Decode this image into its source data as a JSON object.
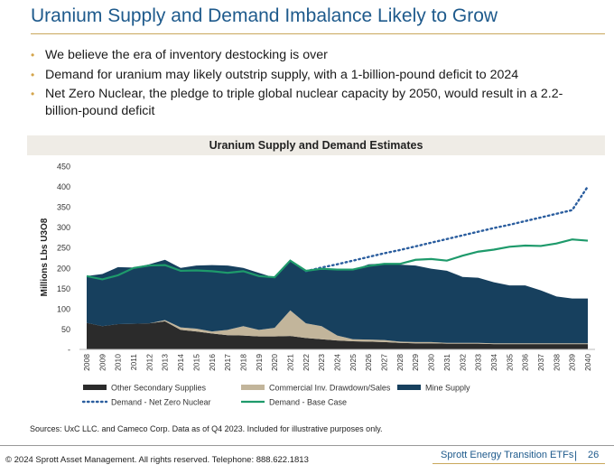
{
  "slide": {
    "title": "Uranium Supply and Demand Imbalance Likely to Grow",
    "bullets": [
      "We believe the era of inventory destocking is over",
      "Demand for uranium may likely outstrip supply, with a 1-billion-pound deficit to 2024",
      "Net Zero Nuclear, the pledge to triple global nuclear capacity by 2050, would result in a 2.2-billion-pound deficit"
    ],
    "bullet_marker": "•",
    "sources": "Sources: UxC LLC. and Cameco Corp. Data as of Q4 2023. Included for illustrative purposes only.",
    "copyright": "© 2024 Sprott Asset Management. All rights reserved. Telephone: 888.622.1813",
    "brand": "Sprott Energy Transition ETFs",
    "separator": "|",
    "page_number": "26"
  },
  "chart_data": {
    "type": "area",
    "title": "Uranium Supply and Demand Estimates",
    "ylabel": "Millions Lbs U3O8",
    "xlabel": "",
    "ylim": [
      0,
      450
    ],
    "yticks": [
      0,
      50,
      100,
      150,
      200,
      250,
      300,
      350,
      400,
      450
    ],
    "ytick_labels": [
      "-",
      "50",
      "100",
      "150",
      "200",
      "250",
      "300",
      "350",
      "400",
      "450"
    ],
    "x": [
      "2008",
      "2009",
      "2010",
      "2011",
      "2012",
      "2013",
      "2014",
      "2015",
      "2016",
      "2017",
      "2018",
      "2019",
      "2020",
      "2021",
      "2022",
      "2023",
      "2024",
      "2025",
      "2026",
      "2027",
      "2028",
      "2029",
      "2030",
      "2031",
      "2032",
      "2033",
      "2034",
      "2035",
      "2036",
      "2037",
      "2038",
      "2039",
      "2040"
    ],
    "stacked_series": [
      {
        "name": "Other Secondary Supplies",
        "color": "#2b2b2b",
        "values": [
          65,
          57,
          62,
          63,
          64,
          69,
          48,
          44,
          39,
          35,
          34,
          32,
          32,
          33,
          28,
          25,
          22,
          20,
          19,
          18,
          16,
          15,
          15,
          14,
          14,
          14,
          13,
          13,
          13,
          13,
          13,
          13,
          13
        ]
      },
      {
        "name": "Commercial Inv. Drawdown/Sales",
        "color": "#c2b59b",
        "values": [
          0,
          0,
          0,
          0,
          0,
          3,
          6,
          7,
          5,
          13,
          23,
          16,
          21,
          63,
          36,
          32,
          12,
          5,
          5,
          5,
          3,
          3,
          3,
          2,
          2,
          2,
          2,
          2,
          2,
          2,
          2,
          2,
          2
        ]
      },
      {
        "name": "Mine Supply",
        "color": "#17405e",
        "values": [
          115,
          128,
          140,
          138,
          145,
          148,
          146,
          155,
          163,
          158,
          143,
          140,
          123,
          123,
          129,
          139,
          161,
          170,
          185,
          188,
          189,
          188,
          180,
          177,
          162,
          160,
          150,
          142,
          142,
          130,
          115,
          110,
          110
        ]
      }
    ],
    "line_series": [
      {
        "name": "Demand - Net Zero Nuclear",
        "color": "#2a5d9e",
        "style": "dotted",
        "values": [
          null,
          null,
          null,
          null,
          null,
          null,
          null,
          null,
          null,
          null,
          null,
          null,
          null,
          null,
          192,
          201,
          209,
          218,
          227,
          236,
          244,
          253,
          262,
          271,
          280,
          289,
          298,
          306,
          315,
          324,
          333,
          342,
          400
        ]
      },
      {
        "name": "Demand - Base Case",
        "color": "#1e9a6b",
        "style": "solid",
        "values": [
          180,
          172,
          182,
          200,
          206,
          207,
          193,
          194,
          192,
          188,
          192,
          180,
          177,
          218,
          193,
          198,
          196,
          196,
          205,
          210,
          210,
          220,
          222,
          218,
          230,
          240,
          245,
          252,
          255,
          254,
          260,
          270,
          267
        ]
      }
    ],
    "legend": [
      {
        "name": "Other Secondary Supplies",
        "kind": "bar",
        "color": "#2b2b2b"
      },
      {
        "name": "Commercial Inv. Drawdown/Sales",
        "kind": "bar",
        "color": "#c2b59b"
      },
      {
        "name": "Mine Supply",
        "kind": "bar",
        "color": "#17405e"
      },
      {
        "name": "Demand - Net Zero Nuclear",
        "kind": "dotted",
        "color": "#2a5d9e"
      },
      {
        "name": "Demand - Base Case",
        "kind": "solid",
        "color": "#1e9a6b"
      }
    ],
    "legend_placement": "bottom",
    "grid": false
  }
}
